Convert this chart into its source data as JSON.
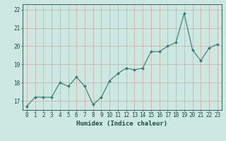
{
  "x": [
    0,
    1,
    2,
    3,
    4,
    5,
    6,
    7,
    8,
    9,
    10,
    11,
    12,
    13,
    14,
    15,
    16,
    17,
    18,
    19,
    20,
    21,
    22,
    23
  ],
  "y": [
    16.7,
    17.2,
    17.2,
    17.2,
    18.0,
    17.8,
    18.3,
    17.8,
    16.8,
    17.2,
    18.1,
    18.5,
    18.8,
    18.7,
    18.8,
    19.7,
    19.7,
    20.0,
    20.2,
    21.8,
    19.8,
    19.2,
    19.9,
    20.1
  ],
  "line_color": "#2e7d6e",
  "marker": "D",
  "marker_size": 2.0,
  "bg_color": "#cce8e0",
  "grid_color": "#b8d4cc",
  "xlabel": "Humidex (Indice chaleur)",
  "xlim": [
    -0.5,
    23.5
  ],
  "ylim": [
    16.5,
    22.3
  ],
  "yticks": [
    17,
    18,
    19,
    20,
    21,
    22
  ],
  "xticks": [
    0,
    1,
    2,
    3,
    4,
    5,
    6,
    7,
    8,
    9,
    10,
    11,
    12,
    13,
    14,
    15,
    16,
    17,
    18,
    19,
    20,
    21,
    22,
    23
  ],
  "font_color": "#1a4a40",
  "tick_fontsize": 5.5,
  "label_fontsize": 6.5,
  "linewidth": 0.8
}
